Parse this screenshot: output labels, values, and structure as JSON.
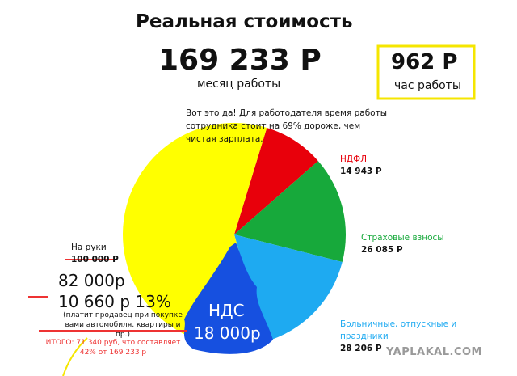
{
  "header": {
    "title": "Реальная стоимость",
    "monthly": "169 233 Р",
    "monthly_caption": "месяц работы",
    "hourly": "962 Р",
    "hourly_caption": "час работы",
    "note": "Вот это да! Для работодателя время работы сотрудника стоит на 69% дороже, чем чистая зарплата."
  },
  "chart_data": {
    "type": "pie",
    "categories": [
      "На руки",
      "НДФЛ",
      "Страховые взносы",
      "Больничные, отпускные и праздники"
    ],
    "values": [
      100000,
      14943,
      26085,
      28206
    ],
    "value_labels": [
      "100 000 Р",
      "14 943 Р",
      "26 085 Р",
      "28 206 Р"
    ],
    "colors": [
      "#ffff00",
      "#e8000b",
      "#17a93b",
      "#1eaaf1"
    ]
  },
  "annotations": {
    "vat": "НДС",
    "vat_amount": "18 000р",
    "net": "82 000р",
    "tax": "10 660 р 13%",
    "tax_note": "(платит продавец при покупке вами автомобиля, квартиры и пр.)",
    "total": "ИТОГО: 71 340 руб, что составляет 42% от 169 233 р"
  },
  "watermark": "YAPLAKAL.COM"
}
